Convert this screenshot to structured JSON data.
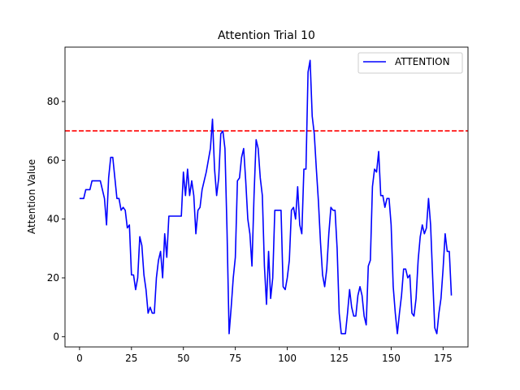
{
  "chart_data": {
    "type": "line",
    "title": "Attention Trial 10",
    "xlabel": "",
    "ylabel": "Attention Value",
    "xlim": [
      -7,
      187
    ],
    "ylim": [
      -3.5,
      98.5
    ],
    "xticks": [
      0,
      25,
      50,
      75,
      100,
      125,
      150,
      175
    ],
    "yticks": [
      0,
      20,
      40,
      60,
      80
    ],
    "grid": false,
    "legend": {
      "placement": "top-right",
      "entries": [
        "ATTENTION"
      ]
    },
    "threshold": {
      "value": 70,
      "color": "#ff0000",
      "style": "dashed"
    },
    "series": [
      {
        "name": "ATTENTION",
        "color": "#0000ff",
        "values": [
          47,
          47,
          47,
          50,
          50,
          50,
          53,
          53,
          53,
          53,
          53,
          50,
          47,
          38,
          54,
          61,
          61,
          54,
          47,
          47,
          43,
          44,
          43,
          37,
          38,
          21,
          21,
          16,
          20,
          34,
          31,
          21,
          16,
          8,
          10,
          8,
          8,
          20,
          26,
          29,
          20,
          35,
          27,
          41,
          41,
          41,
          41,
          41,
          41,
          41,
          56,
          48,
          57,
          48,
          53,
          48,
          35,
          43,
          44,
          50,
          53,
          56,
          60,
          64,
          74,
          57,
          48,
          54,
          69,
          70,
          64,
          36,
          1,
          10,
          20,
          27,
          53,
          54,
          61,
          64,
          53,
          40,
          35,
          24,
          48,
          67,
          64,
          54,
          48,
          24,
          11,
          29,
          13,
          20,
          43,
          43,
          43,
          43,
          17,
          16,
          20,
          26,
          43,
          44,
          40,
          51,
          38,
          35,
          57,
          57,
          90,
          94,
          75,
          69,
          57,
          46,
          32,
          21,
          17,
          23,
          35,
          44,
          43,
          43,
          30,
          8,
          1,
          1,
          1,
          8,
          16,
          10,
          7,
          7,
          14,
          17,
          14,
          7,
          4,
          24,
          26,
          51,
          57,
          56,
          63,
          48,
          48,
          44,
          47,
          47,
          38,
          17,
          8,
          1,
          8,
          14,
          23,
          23,
          20,
          21,
          8,
          7,
          13,
          26,
          34,
          38,
          35,
          37,
          47,
          38,
          20,
          3,
          1,
          8,
          13,
          23,
          35,
          29,
          29,
          14
        ]
      }
    ]
  }
}
